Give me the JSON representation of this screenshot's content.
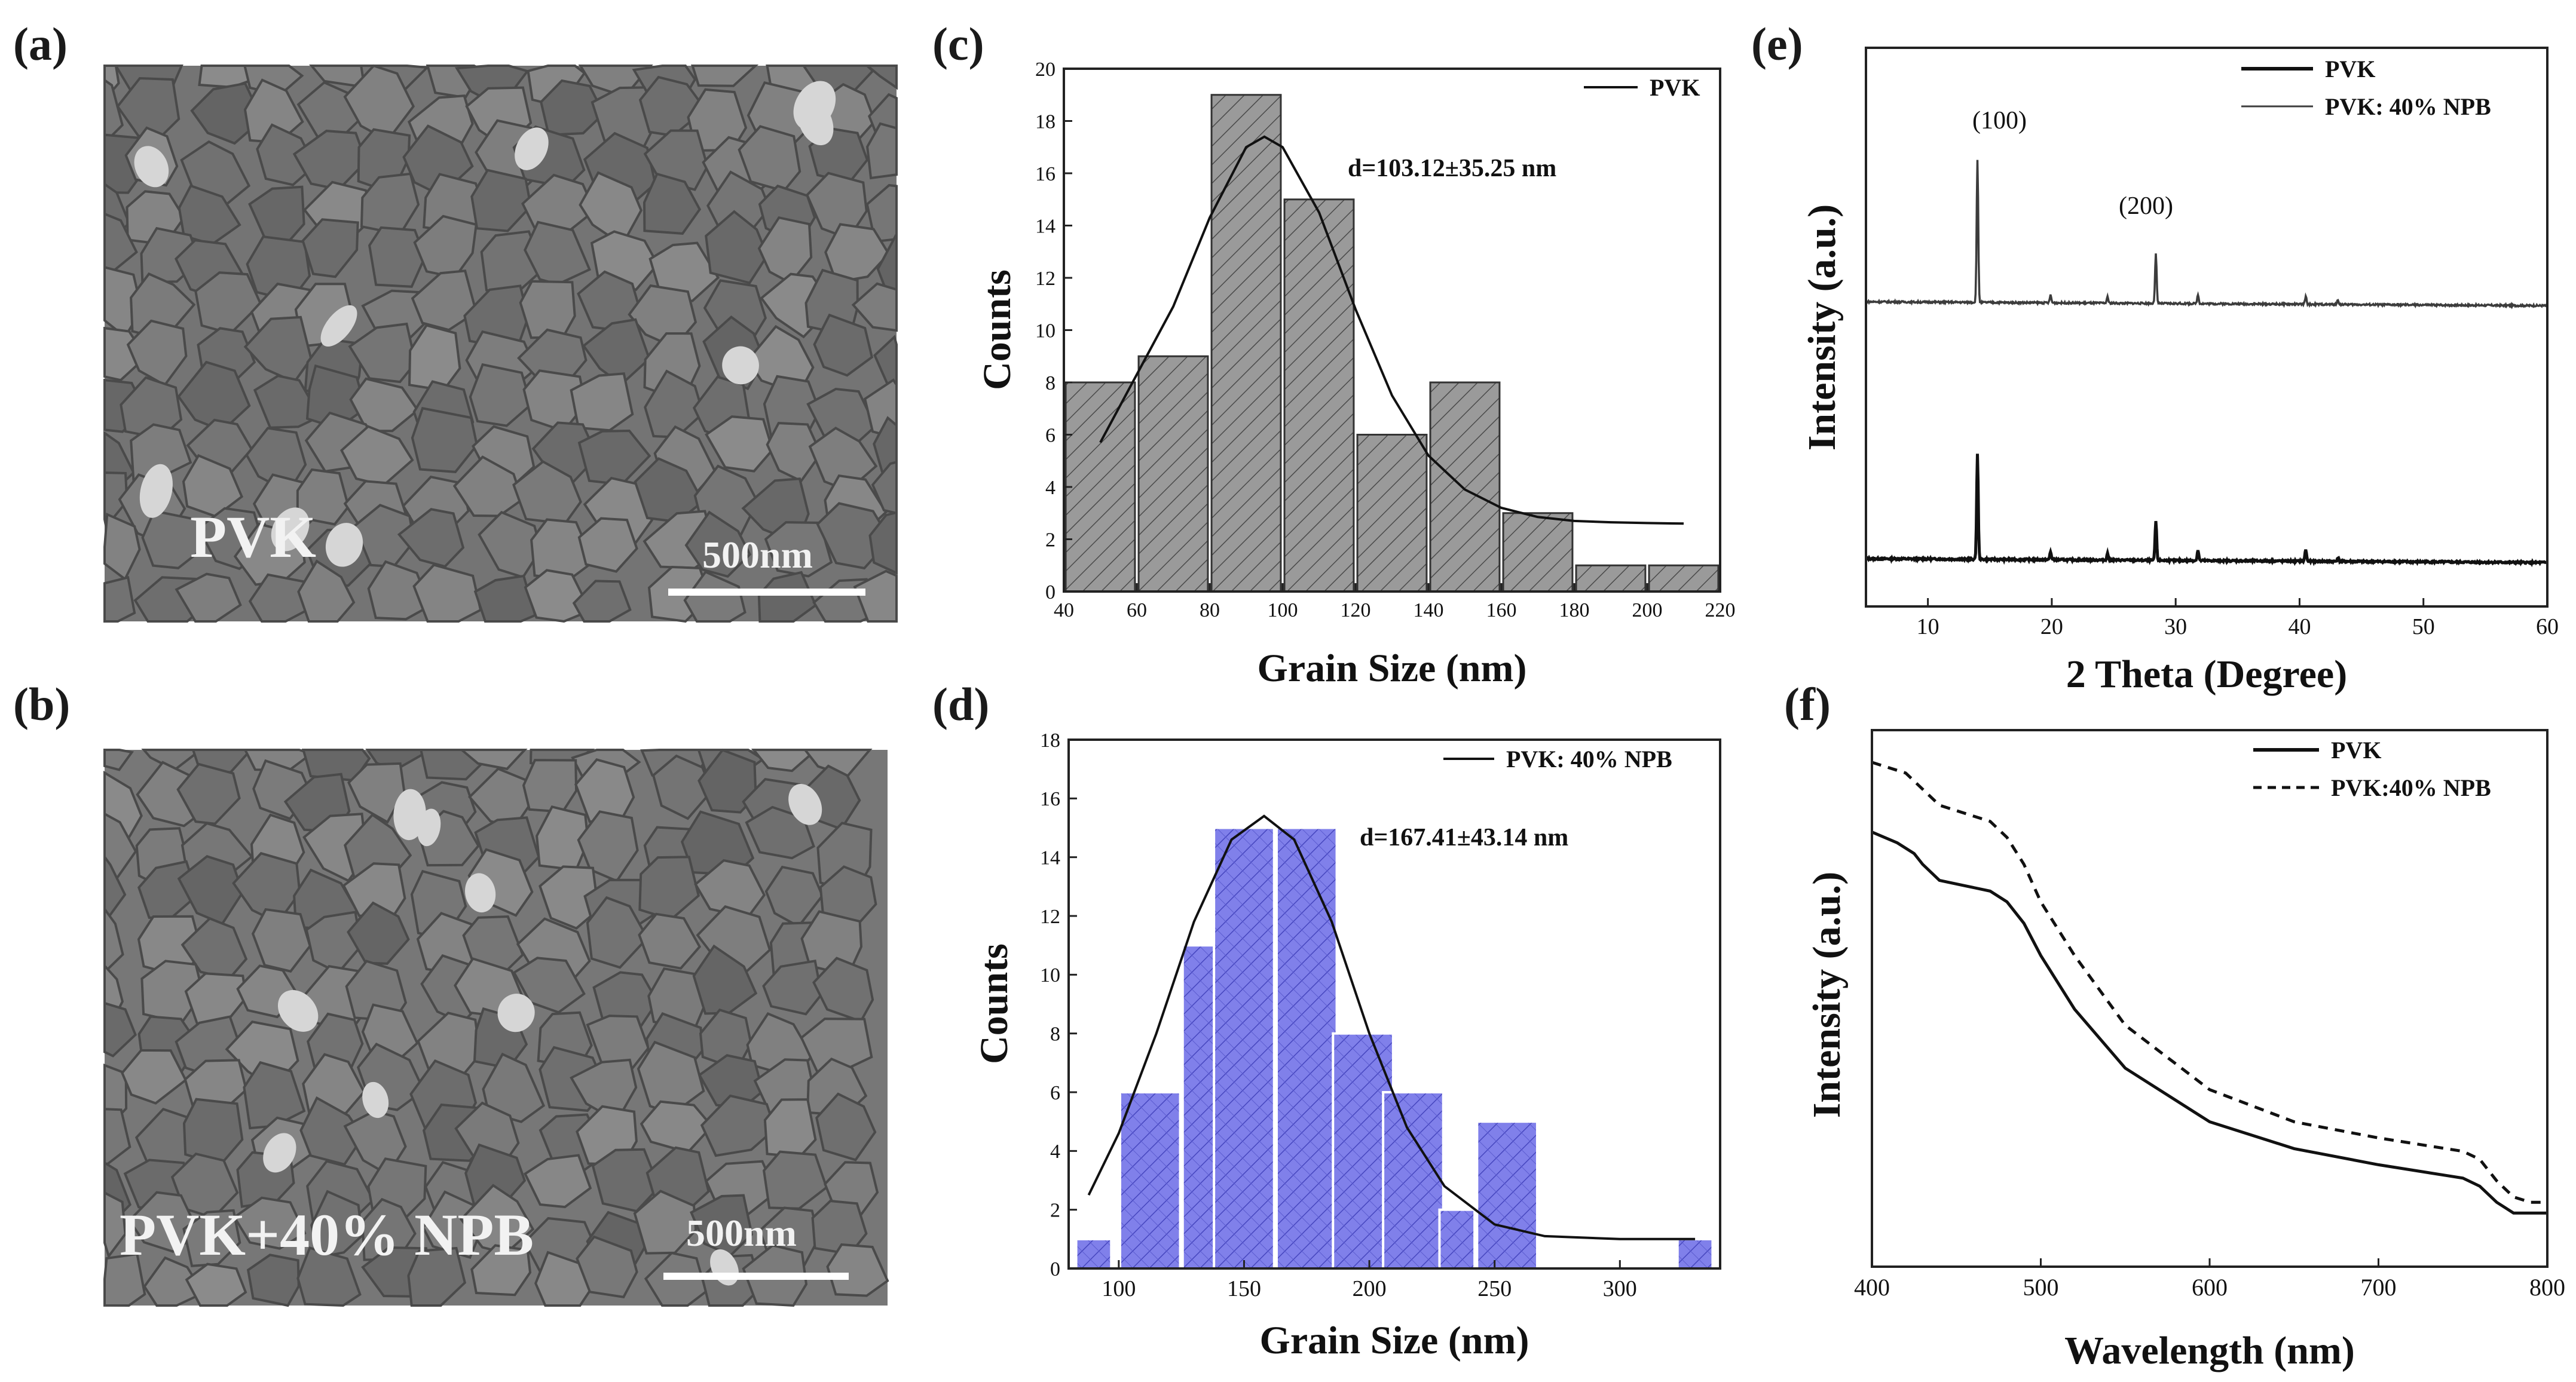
{
  "figure": {
    "panel_labels": [
      "(a)",
      "(b)",
      "(c)",
      "(d)",
      "(e)",
      "(f)"
    ],
    "sem_a": {
      "sample_label": "PVK",
      "scale_bar": "500nm"
    },
    "sem_b": {
      "sample_label": "PVK+40% NPB",
      "scale_bar": "500nm"
    }
  },
  "chart_data": [
    {
      "panel": "(c)",
      "type": "bar",
      "xlabel": "Grain Size (nm)",
      "ylabel": "Counts",
      "xlim": [
        40,
        220
      ],
      "ylim": [
        0,
        20
      ],
      "xticks": [
        "40",
        "60",
        "80",
        "100",
        "120",
        "140",
        "160",
        "180",
        "200",
        "220"
      ],
      "yticks": [
        "0",
        "2",
        "4",
        "6",
        "8",
        "10",
        "12",
        "14",
        "16",
        "18",
        "20"
      ],
      "bin_centers": [
        50,
        70,
        90,
        110,
        130,
        150,
        170,
        190,
        210
      ],
      "values": [
        8,
        9,
        19,
        15,
        6,
        8,
        3,
        1,
        1
      ],
      "fill_color": "#9a9a9a",
      "legend": [
        "PVK"
      ],
      "annotation": "d=103.12±35.25 nm",
      "fit": {
        "x": [
          50,
          70,
          80,
          90,
          95,
          100,
          110,
          120,
          130,
          140,
          150,
          160,
          170,
          180,
          190,
          200,
          210
        ],
        "y": [
          5.7,
          10.9,
          14.3,
          17.0,
          17.4,
          17.0,
          14.5,
          10.8,
          7.5,
          5.2,
          3.9,
          3.2,
          2.85,
          2.7,
          2.65,
          2.62,
          2.6
        ]
      }
    },
    {
      "panel": "(d)",
      "type": "bar",
      "xlabel": "Grain Size (nm)",
      "ylabel": "Counts",
      "xlim": [
        80,
        340
      ],
      "ylim": [
        0,
        18
      ],
      "xticks": [
        "100",
        "150",
        "200",
        "250",
        "300"
      ],
      "yticks": [
        "0",
        "2",
        "4",
        "6",
        "8",
        "10",
        "12",
        "14",
        "16",
        "18"
      ],
      "bin_centers": [
        90,
        112.5,
        137.5,
        150,
        175,
        197.5,
        217.5,
        235,
        255,
        330
      ],
      "values": [
        1,
        6,
        11,
        15,
        15,
        8,
        6,
        2,
        5,
        1
      ],
      "fill_color": "#7b7be6",
      "legend": [
        "PVK: 40% NPB"
      ],
      "annotation": "d=167.41±43.14 nm",
      "fit": {
        "x": [
          88,
          100,
          115,
          130,
          145,
          158,
          170,
          185,
          200,
          215,
          230,
          250,
          270,
          300,
          330
        ],
        "y": [
          2.5,
          4.6,
          8.0,
          11.8,
          14.6,
          15.4,
          14.6,
          11.8,
          8.0,
          4.8,
          2.8,
          1.5,
          1.1,
          1.0,
          1.0
        ]
      }
    },
    {
      "panel": "(e)",
      "type": "line",
      "xlabel": "2 Theta (Degree)",
      "ylabel": "Intensity (a.u.)",
      "xlim": [
        5,
        60
      ],
      "xticks": [
        "10",
        "20",
        "30",
        "40",
        "50",
        "60"
      ],
      "series": [
        {
          "name": "PVK",
          "peaks": [
            [
              14.0,
              80
            ],
            [
              19.9,
              6
            ],
            [
              24.5,
              5
            ],
            [
              28.4,
              30
            ],
            [
              31.8,
              8
            ],
            [
              40.5,
              9
            ],
            [
              43.1,
              3
            ]
          ]
        },
        {
          "name": "PVK: 40% NPB",
          "peaks": [
            [
              14.0,
              95
            ],
            [
              19.9,
              5
            ],
            [
              24.5,
              4
            ],
            [
              28.4,
              33
            ],
            [
              31.8,
              6
            ],
            [
              40.5,
              5
            ],
            [
              43.1,
              3
            ]
          ]
        }
      ],
      "annotations": [
        "(100)",
        "(200)"
      ]
    },
    {
      "panel": "(f)",
      "type": "line",
      "xlabel": "Wavelength (nm)",
      "ylabel": "Intensity (a.u.)",
      "xlim": [
        400,
        800
      ],
      "xticks": [
        "400",
        "500",
        "600",
        "700",
        "800"
      ],
      "series": [
        {
          "name": "PVK",
          "style": "solid",
          "x": [
            400,
            415,
            425,
            430,
            440,
            455,
            470,
            480,
            490,
            500,
            520,
            550,
            600,
            650,
            700,
            740,
            750,
            760,
            770,
            780,
            790,
            800
          ],
          "y": [
            0.81,
            0.79,
            0.77,
            0.75,
            0.72,
            0.71,
            0.7,
            0.68,
            0.64,
            0.58,
            0.48,
            0.37,
            0.27,
            0.22,
            0.19,
            0.17,
            0.165,
            0.15,
            0.12,
            0.1,
            0.1,
            0.1
          ]
        },
        {
          "name": "PVK:40% NPB",
          "style": "dashed",
          "x": [
            400,
            420,
            440,
            460,
            470,
            480,
            490,
            500,
            520,
            550,
            600,
            650,
            700,
            740,
            750,
            760,
            770,
            780,
            790,
            800
          ],
          "y": [
            0.94,
            0.92,
            0.86,
            0.84,
            0.83,
            0.8,
            0.75,
            0.68,
            0.58,
            0.45,
            0.33,
            0.27,
            0.24,
            0.22,
            0.215,
            0.2,
            0.16,
            0.13,
            0.12,
            0.12
          ]
        }
      ]
    }
  ]
}
